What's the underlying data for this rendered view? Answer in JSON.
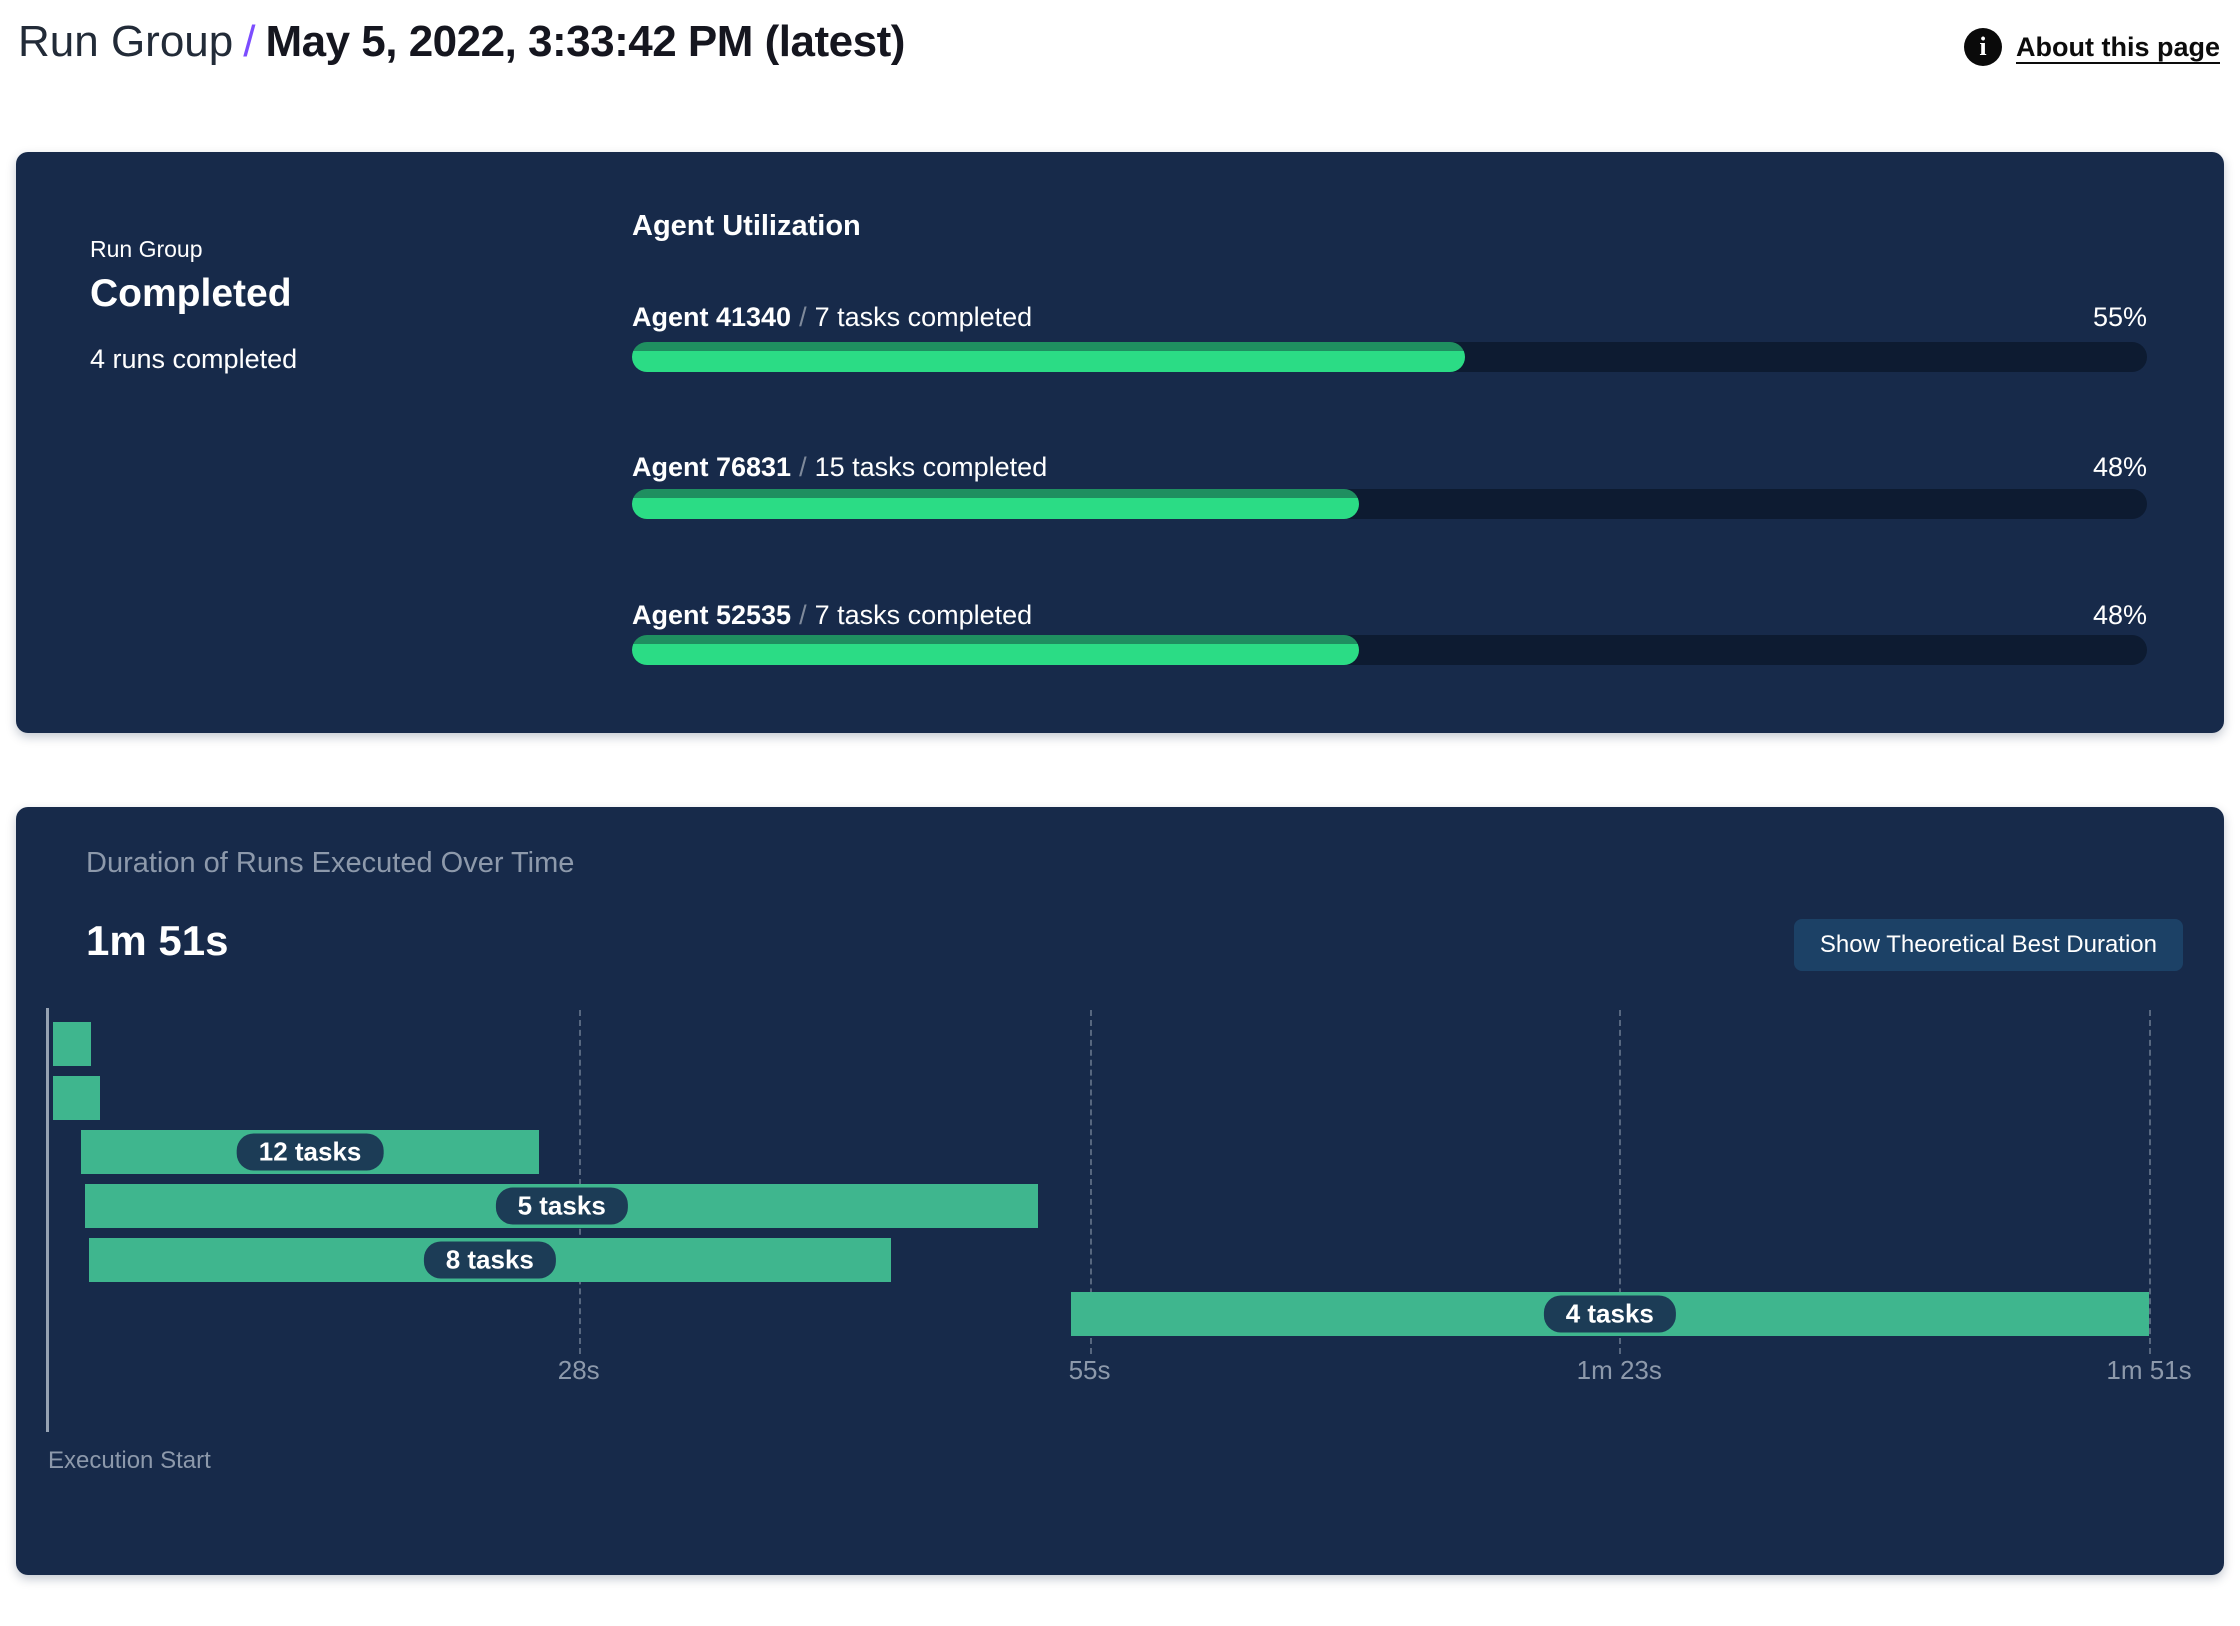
{
  "header": {
    "breadcrumb_root": "Run Group",
    "breadcrumb_separator": "/",
    "title": "May 5, 2022, 3:33:42 PM (latest)",
    "about_link": "About this page",
    "accent_color": "#7c4dff"
  },
  "status_card": {
    "label": "Run Group",
    "status": "Completed",
    "subtext": "4 runs completed",
    "utilization": {
      "heading": "Agent Utilization",
      "separator": "/",
      "agents": [
        {
          "name": "Agent 41340",
          "tasks": "7 tasks completed",
          "percent": "55%",
          "value": 55
        },
        {
          "name": "Agent 76831",
          "tasks": "15 tasks completed",
          "percent": "48%",
          "value": 48
        },
        {
          "name": "Agent 52535",
          "tasks": "7 tasks completed",
          "percent": "48%",
          "value": 48
        }
      ]
    }
  },
  "duration_card": {
    "title": "Duration of Runs Executed Over Time",
    "total_duration": "1m 51s",
    "button_label": "Show Theoretical Best Duration",
    "axis_label": "Execution Start"
  },
  "colors": {
    "card_background": "#172a4a",
    "progress_track": "#0d1b31",
    "progress_fill": "#2bdc85",
    "gantt_bar": "#3fb68e",
    "pill_background": "#1c3c56",
    "muted_text": "#8d99ab"
  },
  "chart_data": [
    {
      "type": "bar",
      "title": "Agent Utilization",
      "categories": [
        "Agent 41340",
        "Agent 76831",
        "Agent 52535"
      ],
      "values": [
        55,
        48,
        48
      ],
      "value_labels": [
        "55%",
        "48%",
        "48%"
      ],
      "annotations": [
        "7 tasks completed",
        "15 tasks completed",
        "7 tasks completed"
      ],
      "xlim": [
        0,
        100
      ],
      "orientation": "horizontal",
      "bar_color": "#2bdc85",
      "track_color": "#0d1b31"
    },
    {
      "type": "gantt",
      "title": "Duration of Runs Executed Over Time",
      "total_label": "1m 51s",
      "xlabel": "Execution Start",
      "x_max_s": 111,
      "ticks": [
        {
          "label": "28s",
          "s": 28
        },
        {
          "label": "55s",
          "s": 55
        },
        {
          "label": "1m 23s",
          "s": 83
        },
        {
          "label": "1m 51s",
          "s": 111
        }
      ],
      "bars": [
        {
          "label": "",
          "start_s": 0.2,
          "end_s": 2.2
        },
        {
          "label": "",
          "start_s": 0.2,
          "end_s": 2.7
        },
        {
          "label": "12 tasks",
          "start_s": 1.7,
          "end_s": 25.9
        },
        {
          "label": "5 tasks",
          "start_s": 1.9,
          "end_s": 52.3
        },
        {
          "label": "8 tasks",
          "start_s": 2.1,
          "end_s": 44.5
        },
        {
          "label": "4 tasks",
          "start_s": 54.0,
          "end_s": 111.0
        }
      ],
      "bar_color": "#3fb68e",
      "grid": "dashed-vertical",
      "legend": "none"
    }
  ]
}
